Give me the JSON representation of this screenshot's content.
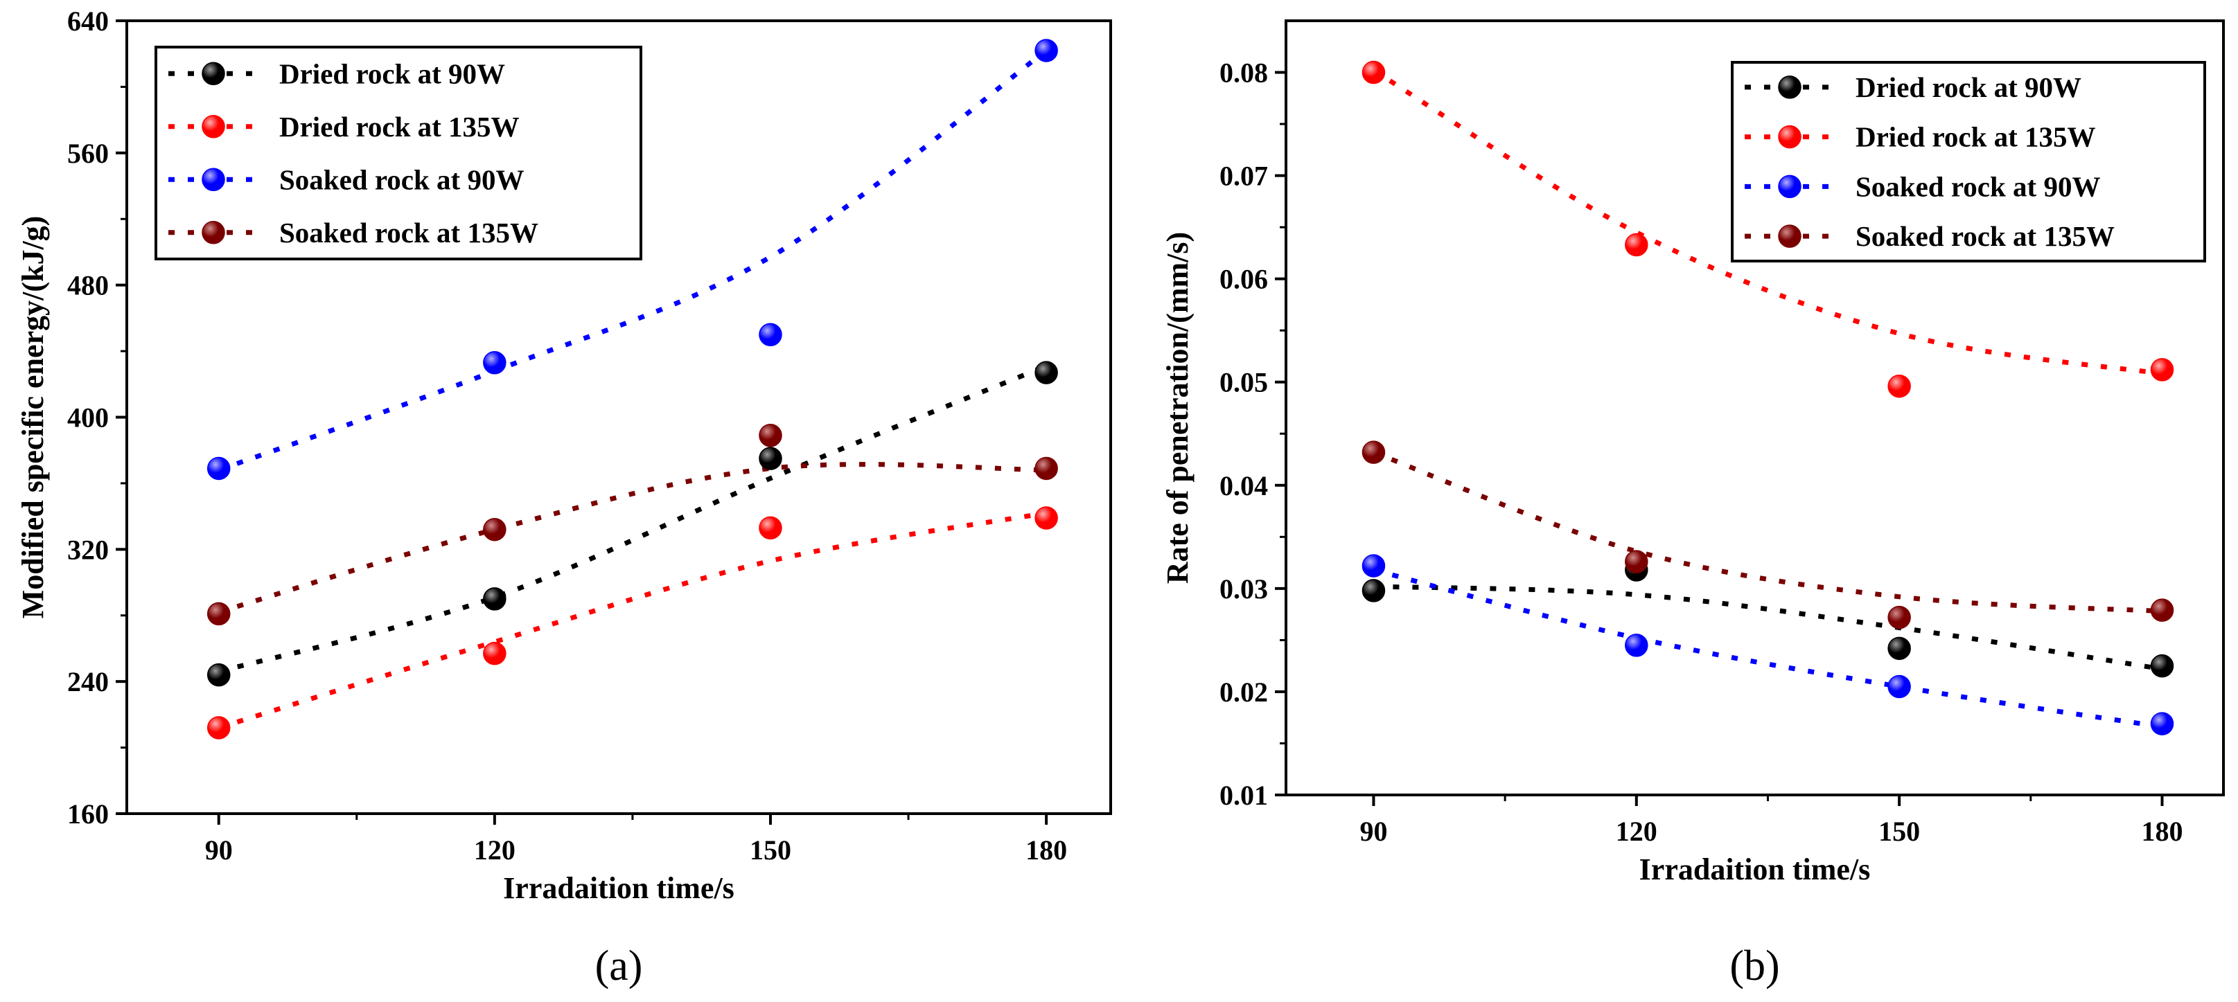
{
  "colors": {
    "series": [
      "#000000",
      "#ff0000",
      "#0000ff",
      "#7a0000"
    ],
    "series_hi": [
      "#9a9a9a",
      "#ffb0b0",
      "#b0b0ff",
      "#d08a8a"
    ]
  },
  "chart_data": [
    {
      "type": "scatter",
      "panel_label": "(a)",
      "xlabel": "Irradaition time/s",
      "ylabel": "Modified specific energy/(kJ/g)",
      "xlim": [
        80,
        187
      ],
      "ylim": [
        160,
        640
      ],
      "xticks": [
        "90",
        "120",
        "150",
        "180"
      ],
      "yticks": [
        "160",
        "240",
        "320",
        "400",
        "480",
        "560",
        "640"
      ],
      "legend_position": "top-left",
      "x": [
        90,
        120,
        150,
        180
      ],
      "series": [
        {
          "name": "Dried rock at 90W",
          "values": [
            244,
            290,
            375,
            427
          ],
          "trend": [
            246,
            291,
            363,
            431
          ]
        },
        {
          "name": "Dried rock at 135W",
          "values": [
            212,
            257,
            333,
            339
          ],
          "trend": [
            212,
            264,
            313,
            342
          ]
        },
        {
          "name": "Soaked rock at 90W",
          "values": [
            369,
            433,
            450,
            622
          ],
          "trend": [
            368,
            428,
            497,
            622
          ]
        },
        {
          "name": "Soaked rock at 135W",
          "values": [
            281,
            332,
            389,
            369
          ],
          "trend": [
            282,
            332,
            369,
            368
          ]
        }
      ]
    },
    {
      "type": "scatter",
      "panel_label": "(b)",
      "xlabel": "Irradaition time/s",
      "ylabel": "Rate of penetration/(mm/s)",
      "xlim": [
        80,
        187
      ],
      "ylim": [
        0.01,
        0.085
      ],
      "xticks": [
        "90",
        "120",
        "150",
        "180"
      ],
      "yticks": [
        "0.01",
        "0.02",
        "0.03",
        "0.04",
        "0.05",
        "0.06",
        "0.07",
        "0.08"
      ],
      "legend_position": "top-right",
      "x": [
        90,
        120,
        150,
        180
      ],
      "series": [
        {
          "name": "Dried rock at 90W",
          "values": [
            0.0298,
            0.0318,
            0.0242,
            0.0225
          ],
          "trend": [
            0.0302,
            0.0294,
            0.0262,
            0.0222
          ]
        },
        {
          "name": "Dried rock at 135W",
          "values": [
            0.08,
            0.0633,
            0.0496,
            0.0512
          ],
          "trend": [
            0.0802,
            0.0645,
            0.0547,
            0.0508
          ]
        },
        {
          "name": "Soaked rock at 90W",
          "values": [
            0.0322,
            0.0245,
            0.0205,
            0.0169
          ],
          "trend": [
            0.0318,
            0.0252,
            0.0205,
            0.0166
          ]
        },
        {
          "name": "Soaked rock at 135W",
          "values": [
            0.0432,
            0.0326,
            0.0272,
            0.0279
          ],
          "trend": [
            0.0432,
            0.0336,
            0.0292,
            0.0278
          ]
        }
      ]
    }
  ]
}
